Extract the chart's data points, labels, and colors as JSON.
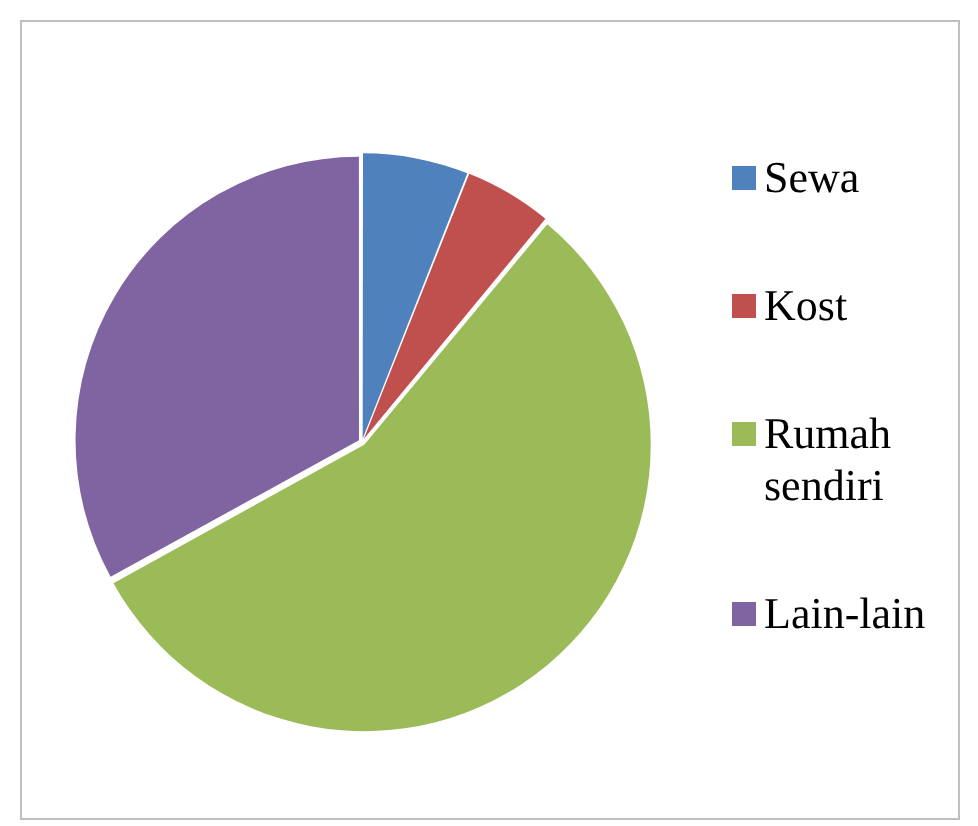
{
  "chart_data": {
    "type": "pie",
    "categories": [
      "Sewa",
      "Kost",
      "Rumah sendiri",
      "Lain-lain"
    ],
    "values": [
      6,
      5,
      56,
      33
    ],
    "colors": [
      "#4f81bd",
      "#c0504d",
      "#9bbb59",
      "#8064a2"
    ],
    "legend": "right"
  }
}
